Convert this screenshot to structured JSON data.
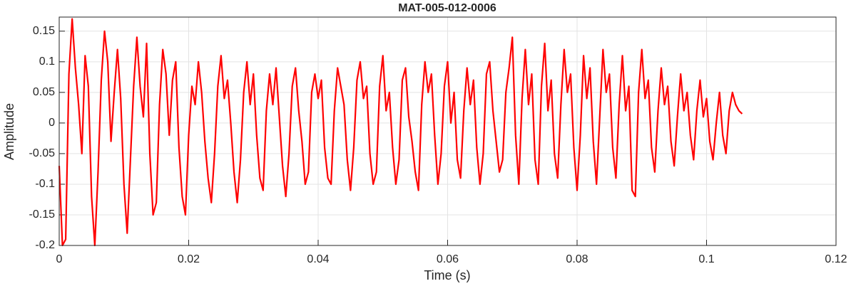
{
  "chart_data": {
    "type": "line",
    "title": "MAT-005-012-0006",
    "xlabel": "Time (s)",
    "ylabel": "Amplitude",
    "x": [
      0,
      0.0005,
      0.001,
      0.0015,
      0.002,
      0.0025,
      0.003,
      0.0035,
      0.004,
      0.0045,
      0.005,
      0.0055,
      0.006,
      0.0065,
      0.007,
      0.0075,
      0.008,
      0.0085,
      0.009,
      0.0095,
      0.01,
      0.0105,
      0.011,
      0.0115,
      0.012,
      0.0125,
      0.013,
      0.0135,
      0.014,
      0.0145,
      0.015,
      0.0155,
      0.016,
      0.0165,
      0.017,
      0.0175,
      0.018,
      0.0185,
      0.019,
      0.0195,
      0.02,
      0.0205,
      0.021,
      0.0215,
      0.022,
      0.0225,
      0.023,
      0.0235,
      0.024,
      0.0245,
      0.025,
      0.0255,
      0.026,
      0.0265,
      0.027,
      0.0275,
      0.028,
      0.0285,
      0.029,
      0.0295,
      0.03,
      0.0305,
      0.031,
      0.0315,
      0.032,
      0.0325,
      0.033,
      0.0335,
      0.034,
      0.0345,
      0.035,
      0.0355,
      0.036,
      0.0365,
      0.037,
      0.0375,
      0.038,
      0.0385,
      0.039,
      0.0395,
      0.04,
      0.0405,
      0.041,
      0.0415,
      0.042,
      0.0425,
      0.043,
      0.0435,
      0.044,
      0.0445,
      0.045,
      0.0455,
      0.046,
      0.0465,
      0.047,
      0.0475,
      0.048,
      0.0485,
      0.049,
      0.0495,
      0.05,
      0.0505,
      0.051,
      0.0515,
      0.052,
      0.0525,
      0.053,
      0.0535,
      0.054,
      0.0545,
      0.055,
      0.0555,
      0.056,
      0.0565,
      0.057,
      0.0575,
      0.058,
      0.0585,
      0.059,
      0.0595,
      0.06,
      0.0605,
      0.061,
      0.0615,
      0.062,
      0.0625,
      0.063,
      0.0635,
      0.064,
      0.0645,
      0.065,
      0.0655,
      0.066,
      0.0665,
      0.067,
      0.0675,
      0.068,
      0.0685,
      0.069,
      0.0695,
      0.07,
      0.0705,
      0.071,
      0.0715,
      0.072,
      0.0725,
      0.073,
      0.0735,
      0.074,
      0.0745,
      0.075,
      0.0755,
      0.076,
      0.0765,
      0.077,
      0.0775,
      0.078,
      0.0785,
      0.079,
      0.0795,
      0.08,
      0.0805,
      0.081,
      0.0815,
      0.082,
      0.0825,
      0.083,
      0.0835,
      0.084,
      0.0845,
      0.085,
      0.0855,
      0.086,
      0.0865,
      0.087,
      0.0875,
      0.088,
      0.0885,
      0.089,
      0.0895,
      0.09,
      0.0905,
      0.091,
      0.0915,
      0.092,
      0.0925,
      0.093,
      0.0935,
      0.094,
      0.0945,
      0.095,
      0.0955,
      0.096,
      0.0965,
      0.097,
      0.0975,
      0.098,
      0.0985,
      0.099,
      0.0995,
      0.1,
      0.1005,
      0.101,
      0.1015,
      0.102,
      0.1025,
      0.103,
      0.1035,
      0.104,
      0.1045,
      0.105,
      0.1055
    ],
    "values": [
      -0.07,
      -0.2,
      -0.19,
      0.08,
      0.17,
      0.09,
      0.03,
      -0.05,
      0.11,
      0.06,
      -0.12,
      -0.2,
      -0.08,
      0.07,
      0.15,
      0.1,
      -0.03,
      0.05,
      0.12,
      0.04,
      -0.1,
      -0.18,
      -0.06,
      0.06,
      0.14,
      0.06,
      0.01,
      0.13,
      -0.05,
      -0.15,
      -0.13,
      0.03,
      0.12,
      0.08,
      -0.02,
      0.07,
      0.1,
      -0.04,
      -0.12,
      -0.15,
      -0.02,
      0.06,
      0.03,
      0.1,
      0.05,
      -0.03,
      -0.09,
      -0.13,
      -0.05,
      0.06,
      0.11,
      0.04,
      0.07,
      0.0,
      -0.08,
      -0.13,
      -0.06,
      0.05,
      0.1,
      0.03,
      0.08,
      -0.02,
      -0.09,
      -0.11,
      0.02,
      0.08,
      0.03,
      0.09,
      0.01,
      -0.07,
      -0.12,
      -0.05,
      0.06,
      0.09,
      0.02,
      -0.03,
      -0.1,
      -0.08,
      0.05,
      0.08,
      0.04,
      0.07,
      -0.04,
      -0.09,
      -0.1,
      0.02,
      0.09,
      0.06,
      0.03,
      -0.06,
      -0.11,
      -0.04,
      0.07,
      0.1,
      0.04,
      0.06,
      -0.05,
      -0.1,
      -0.08,
      0.06,
      0.11,
      0.02,
      0.05,
      -0.04,
      -0.1,
      -0.06,
      0.07,
      0.09,
      0.01,
      -0.03,
      -0.08,
      -0.11,
      0.03,
      0.1,
      0.05,
      0.08,
      -0.02,
      -0.1,
      -0.05,
      0.06,
      0.1,
      0.0,
      0.05,
      -0.06,
      -0.09,
      0.02,
      0.09,
      0.03,
      0.07,
      -0.04,
      -0.1,
      -0.05,
      0.08,
      0.1,
      0.02,
      -0.03,
      -0.08,
      -0.06,
      0.05,
      0.09,
      0.14,
      -0.02,
      -0.1,
      0.04,
      0.12,
      0.03,
      0.08,
      -0.06,
      -0.1,
      0.06,
      0.13,
      0.02,
      0.07,
      -0.05,
      -0.09,
      0.03,
      0.12,
      0.05,
      0.08,
      -0.04,
      -0.11,
      -0.02,
      0.11,
      0.04,
      0.09,
      -0.03,
      -0.1,
      0.01,
      0.12,
      0.05,
      0.08,
      -0.04,
      -0.09,
      0.03,
      0.11,
      0.02,
      0.06,
      -0.11,
      -0.12,
      0.05,
      0.12,
      0.04,
      0.07,
      -0.04,
      -0.08,
      0.02,
      0.09,
      0.03,
      0.06,
      -0.03,
      -0.07,
      0.01,
      0.08,
      0.02,
      0.05,
      -0.02,
      -0.06,
      0.02,
      0.07,
      0.01,
      0.04,
      -0.03,
      -0.06,
      0.0,
      0.05,
      -0.02,
      -0.05,
      0.02,
      0.05,
      0.03,
      0.02,
      0.015
    ],
    "color": "#ff0000",
    "xlim": [
      0,
      0.12
    ],
    "xticks": [
      0,
      0.02,
      0.04,
      0.06,
      0.08,
      0.1,
      0.12
    ],
    "ylim": [
      -0.2,
      0.173
    ],
    "yticks": [
      -0.2,
      -0.15,
      -0.1,
      -0.05,
      0,
      0.05,
      0.1,
      0.15
    ],
    "grid": true
  }
}
